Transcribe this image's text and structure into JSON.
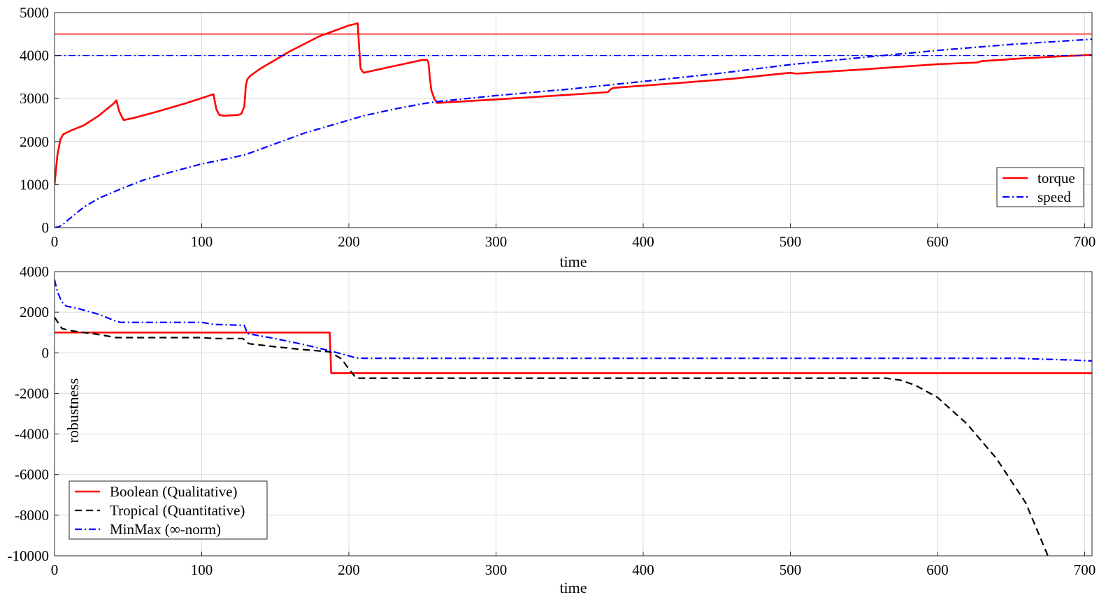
{
  "chart_data": [
    {
      "type": "line",
      "xlabel": "time",
      "ylabel": "",
      "xlim": [
        0,
        705
      ],
      "ylim": [
        0,
        5000
      ],
      "xticks": [
        0,
        100,
        200,
        300,
        400,
        500,
        600,
        700
      ],
      "yticks": [
        0,
        1000,
        2000,
        3000,
        4000,
        5000
      ],
      "grid": true,
      "legend_position": "bottom-right",
      "series": [
        {
          "name": "torque",
          "color": "#ff0000",
          "style": "solid",
          "x": [
            0,
            2,
            4,
            6,
            10,
            20,
            30,
            40,
            42,
            44,
            47,
            55,
            70,
            90,
            108,
            110,
            112,
            115,
            125,
            127,
            129,
            130,
            131,
            133,
            140,
            160,
            180,
            200,
            206,
            207,
            208,
            210,
            230,
            250,
            253,
            254,
            255,
            256,
            258,
            260,
            300,
            350,
            376,
            378,
            380,
            420,
            460,
            500,
            504,
            550,
            600,
            627,
            630,
            660,
            705
          ],
          "y": [
            1000,
            1700,
            2050,
            2170,
            2240,
            2380,
            2600,
            2880,
            2960,
            2700,
            2500,
            2560,
            2700,
            2900,
            3100,
            2750,
            2620,
            2600,
            2620,
            2650,
            2820,
            3300,
            3450,
            3530,
            3700,
            4100,
            4450,
            4700,
            4750,
            4200,
            3700,
            3600,
            3750,
            3900,
            3900,
            3850,
            3500,
            3200,
            3000,
            2900,
            2980,
            3090,
            3150,
            3220,
            3250,
            3350,
            3460,
            3600,
            3580,
            3680,
            3800,
            3840,
            3870,
            3940,
            4020
          ]
        },
        {
          "name": "speed",
          "color": "#0000ff",
          "style": "dashdot",
          "x": [
            0,
            3,
            6,
            10,
            20,
            30,
            45,
            60,
            80,
            100,
            120,
            130,
            150,
            170,
            190,
            200,
            210,
            230,
            250,
            260,
            300,
            350,
            400,
            450,
            500,
            550,
            600,
            650,
            705
          ],
          "y": [
            0,
            20,
            80,
            200,
            480,
            680,
            900,
            1100,
            1300,
            1480,
            1620,
            1700,
            1950,
            2200,
            2400,
            2500,
            2600,
            2750,
            2880,
            2930,
            3070,
            3220,
            3400,
            3580,
            3790,
            3960,
            4120,
            4260,
            4380
          ]
        },
        {
          "name": "",
          "color": "#ff0000",
          "style": "solid-thin",
          "x": [
            0,
            705
          ],
          "y": [
            4500,
            4500
          ]
        },
        {
          "name": "",
          "color": "#0000ff",
          "style": "dashdot-thin",
          "x": [
            0,
            705
          ],
          "y": [
            4000,
            4000
          ]
        }
      ]
    },
    {
      "type": "line",
      "xlabel": "time",
      "ylabel": "robustness",
      "xlim": [
        0,
        705
      ],
      "ylim": [
        -10000,
        4000
      ],
      "xticks": [
        0,
        100,
        200,
        300,
        400,
        500,
        600,
        700
      ],
      "yticks": [
        -10000,
        -8000,
        -6000,
        -4000,
        -2000,
        0,
        2000,
        4000
      ],
      "grid": true,
      "legend_position": "bottom-left",
      "series": [
        {
          "name": "Boolean (Qualitative)",
          "color": "#ff0000",
          "style": "solid",
          "x": [
            0,
            187,
            188,
            705
          ],
          "y": [
            1000,
            1000,
            -1000,
            -1000
          ]
        },
        {
          "name": "Tropical (Quantitative)",
          "color": "#000000",
          "style": "dashed",
          "x": [
            0,
            5,
            10,
            20,
            30,
            42,
            45,
            60,
            100,
            110,
            128,
            132,
            150,
            170,
            187,
            195,
            200,
            205,
            207,
            300,
            400,
            500,
            565,
            575,
            585,
            600,
            620,
            640,
            660,
            675
          ],
          "y": [
            1750,
            1200,
            1100,
            1000,
            900,
            750,
            750,
            750,
            750,
            700,
            700,
            450,
            300,
            150,
            50,
            -300,
            -800,
            -1250,
            -1250,
            -1250,
            -1250,
            -1250,
            -1250,
            -1350,
            -1600,
            -2200,
            -3500,
            -5200,
            -7400,
            -10000
          ]
        },
        {
          "name": "MinMax (∞-norm)",
          "color": "#0000ff",
          "style": "dashdot",
          "x": [
            0,
            2,
            5,
            8,
            15,
            30,
            42,
            45,
            100,
            108,
            129,
            131,
            150,
            170,
            187,
            195,
            200,
            205,
            210,
            300,
            400,
            500,
            600,
            655,
            665,
            690,
            705
          ],
          "y": [
            3600,
            3000,
            2500,
            2300,
            2200,
            1900,
            1550,
            1500,
            1500,
            1400,
            1350,
            950,
            700,
            400,
            100,
            -50,
            -150,
            -250,
            -270,
            -270,
            -270,
            -270,
            -270,
            -270,
            -300,
            -350,
            -400
          ]
        }
      ]
    }
  ]
}
